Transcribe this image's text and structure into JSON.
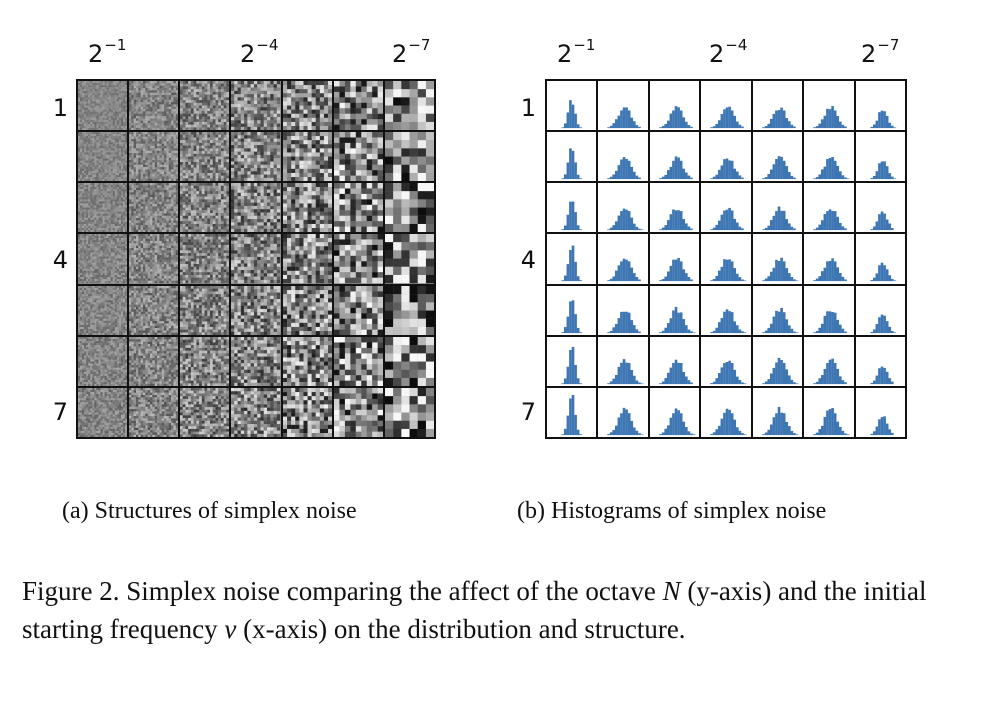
{
  "figure": {
    "panel_a": {
      "caption": "(a) Structures of simplex noise",
      "x_tick_labels": [
        {
          "base": "2",
          "exp": "−1"
        },
        {
          "base": "2",
          "exp": "−4"
        },
        {
          "base": "2",
          "exp": "−7"
        }
      ],
      "y_tick_labels": [
        "1",
        "4",
        "7"
      ]
    },
    "panel_b": {
      "caption": "(b) Histograms of simplex noise",
      "x_tick_labels": [
        {
          "base": "2",
          "exp": "−1"
        },
        {
          "base": "2",
          "exp": "−4"
        },
        {
          "base": "2",
          "exp": "−7"
        }
      ],
      "y_tick_labels": [
        "1",
        "4",
        "7"
      ],
      "bar_color": "#3d76b3"
    },
    "caption": {
      "prefix": "Figure 2.  Simplex noise comparing the affect of the octave ",
      "sym_octave": "N",
      "middle": " (y-axis) and the initial starting frequency ",
      "sym_freq": "ν",
      "suffix": " (x-axis) on the distribution and structure."
    }
  }
}
